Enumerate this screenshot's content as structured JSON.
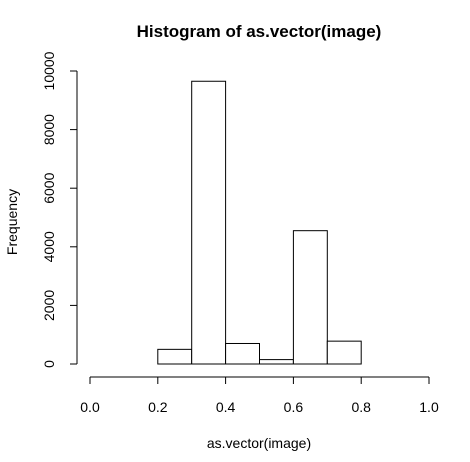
{
  "chart_data": {
    "type": "bar",
    "title": "Histogram of as.vector(image)",
    "xlabel": "as.vector(image)",
    "ylabel": "Frequency",
    "xlim": [
      0,
      1
    ],
    "ylim": [
      0,
      10000
    ],
    "x_ticks": [
      "0.0",
      "0.2",
      "0.4",
      "0.6",
      "0.8",
      "1.0"
    ],
    "y_ticks": [
      "0",
      "2000",
      "4000",
      "6000",
      "8000",
      "10000"
    ],
    "bins": [
      {
        "from": 0.0,
        "to": 0.1,
        "count": 0
      },
      {
        "from": 0.1,
        "to": 0.2,
        "count": 0
      },
      {
        "from": 0.2,
        "to": 0.3,
        "count": 500
      },
      {
        "from": 0.3,
        "to": 0.4,
        "count": 9650
      },
      {
        "from": 0.4,
        "to": 0.5,
        "count": 700
      },
      {
        "from": 0.5,
        "to": 0.6,
        "count": 150
      },
      {
        "from": 0.6,
        "to": 0.7,
        "count": 4550
      },
      {
        "from": 0.7,
        "to": 0.8,
        "count": 780
      },
      {
        "from": 0.8,
        "to": 0.9,
        "count": 0
      },
      {
        "from": 0.9,
        "to": 1.0,
        "count": 0
      }
    ],
    "bar_fill": "#ffffff",
    "bar_stroke": "#000000",
    "grid": false,
    "legend": "none"
  }
}
